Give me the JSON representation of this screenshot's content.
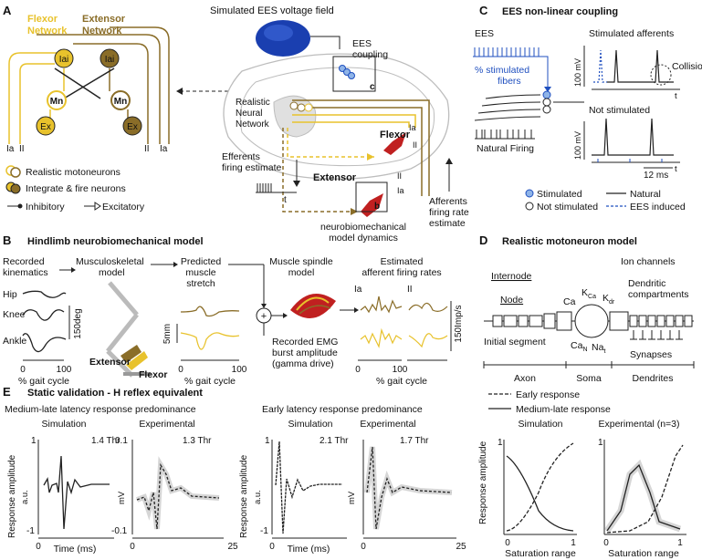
{
  "panelA": {
    "letter": "A",
    "flexor_network": "Flexor\nNetwork",
    "extensor_network": "Extensor\nNetwork",
    "iai": "Iai",
    "mn": "Mn",
    "ex": "Ex",
    "ia_labels": [
      "Ia",
      "II",
      "II",
      "Ia"
    ],
    "legend_realistic": "Realistic motoneurons",
    "legend_integrate": "Integrate & fire neurons",
    "legend_inhibitory": "Inhibitory",
    "legend_excitatory": "Excitatory",
    "ees_field": "Simulated EES voltage field",
    "ees_coupling": "EES\ncoupling",
    "realistic_net": "Realistic\nNeural\nNetwork",
    "flexor": "Flexor",
    "extensor": "Extensor",
    "efferents": "Efferents\nfiring estimate",
    "t": "t",
    "box_b": "b",
    "box_c": "c",
    "model_dynamics": "neurobiomechanical\nmodel dynamics",
    "afferents": "Afferents\nfiring rate\nestimate",
    "ia1": "Ia",
    "ii1": "II",
    "ii2": "II",
    "ia2": "Ia"
  },
  "panelB": {
    "letter": "B",
    "title": "Hindlimb neurobiomechanical model",
    "recorded": "Recorded\nkinematics",
    "musculo": "Musculoskeletal\nmodel",
    "predicted": "Predicted\nmuscle\nstretch",
    "spindle": "Muscle spindle\nmodel",
    "estimated": "Estimated\nafferent firing rates",
    "hip": "Hip",
    "knee": "Knee",
    "ankle": "Ankle",
    "deg": "150deg",
    "mm": "5mm",
    "imp": "150Imp/s",
    "gait": "% gait cycle",
    "tick0": "0",
    "tick100": "100",
    "extensor": "Extensor",
    "flexor": "Flexor",
    "emg": "Recorded EMG\nburst amplitude\n(gamma drive)",
    "ia": "Ia",
    "ii": "II",
    "plus": "+"
  },
  "panelC": {
    "letter": "C",
    "title": "EES non-linear coupling",
    "ees": "EES",
    "pct": "% stimulated\nfibers",
    "natural": "Natural Firing",
    "stim_aff": "Stimulated afferents",
    "not_stim": "Not stimulated",
    "mv1": "100 mV",
    "mv2": "100 mV",
    "collision": "Collision",
    "t": "t",
    "ms": "12 ms",
    "leg_stim": "Stimulated",
    "leg_notstim": "Not stimulated",
    "leg_natural": "Natural",
    "leg_eesind": "EES induced"
  },
  "panelD": {
    "letter": "D",
    "title": "Realistic motoneuron model",
    "ion": "Ion channels",
    "internode": "Internode",
    "node": "Node",
    "dendritic": "Dendritic\ncompartments",
    "initial": "Initial segment",
    "synapses": "Synapses",
    "ca": "Ca",
    "kca": "K",
    "kca_sub": "Ca",
    "kdr": "K",
    "kdr_sub": "dr",
    "can": "Ca",
    "can_sub": "N",
    "nat": "Na",
    "nat_sub": "t",
    "axon": "Axon",
    "soma": "Soma",
    "dendrites": "Dendrites"
  },
  "panelE": {
    "letter": "E",
    "title": "Static validation - H reflex equivalent",
    "medium_title": "Medium-late latency response predominance",
    "early_title": "Early latency response predominance",
    "sim": "Simulation",
    "exp": "Experimental",
    "exp3": "Experimental (n=3)",
    "thr1": "1.4 Thr",
    "thr2": "1.3 Thr",
    "thr3": "2.1 Thr",
    "thr4": "1.7 Thr",
    "resp_amp": "Response amplitude",
    "au": "a.u.",
    "mv": "mV",
    "one": "1",
    "neg1": "-1",
    "p01": "0.1",
    "neg01": "-0.1",
    "zero": "0",
    "t25": "25",
    "time": "Time (ms)",
    "early_resp": "Early response",
    "medium_resp": "Medium-late response",
    "sat": "Saturation range",
    "s1": "1"
  },
  "colors": {
    "flexor": "#e8c22c",
    "extensor": "#8a6d28",
    "blue": "#1f4fbf",
    "gray": "#bdbdbd"
  }
}
